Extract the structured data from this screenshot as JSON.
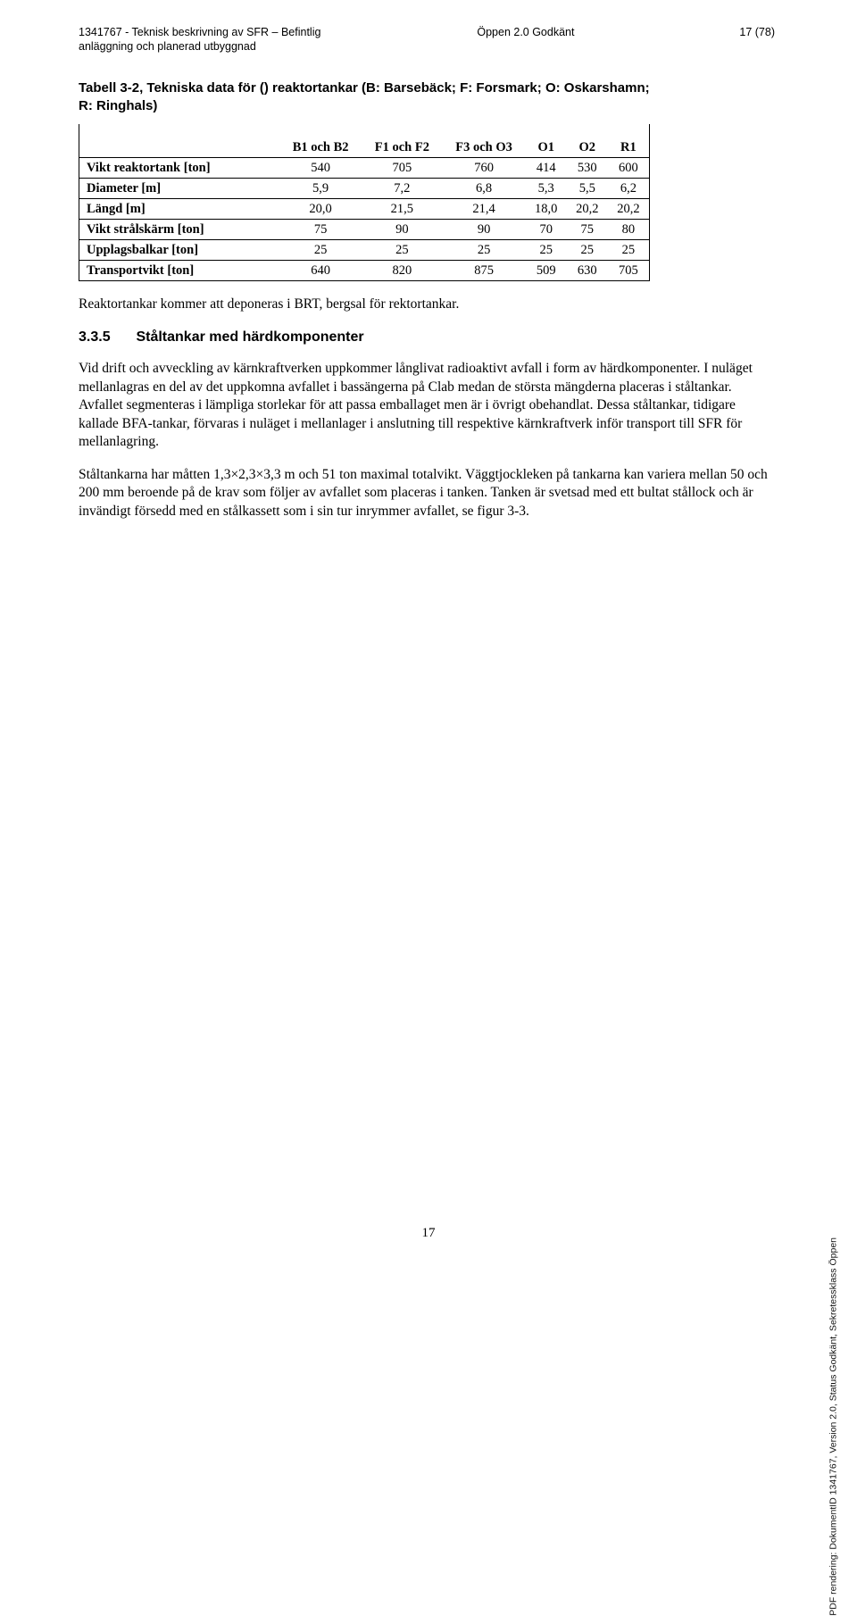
{
  "header": {
    "doc_id": "1341767  -  Teknisk beskrivning av SFR – Befintlig",
    "doc_line2": "anläggning och planerad utbyggnad",
    "status": "Öppen  2.0  Godkänt",
    "page": "17 (78)"
  },
  "table": {
    "caption": "Tabell 3-2, Tekniska data för () reaktortankar (B: Barsebäck; F: Forsmark; O: Oskarshamn; R: Ringhals)",
    "columns": [
      "",
      "B1 och B2",
      "F1 och F2",
      "F3 och O3",
      "O1",
      "O2",
      "R1"
    ],
    "rows": [
      {
        "label": "Vikt reaktortank [ton]",
        "cells": [
          "540",
          "705",
          "760",
          "414",
          "530",
          "600"
        ]
      },
      {
        "label": "Diameter [m]",
        "cells": [
          "5,9",
          "7,2",
          "6,8",
          "5,3",
          "5,5",
          "6,2"
        ]
      },
      {
        "label": "Längd [m]",
        "cells": [
          "20,0",
          "21,5",
          "21,4",
          "18,0",
          "20,2",
          "20,2"
        ]
      },
      {
        "label": "Vikt strålskärm [ton]",
        "cells": [
          "75",
          "90",
          "90",
          "70",
          "75",
          "80"
        ]
      },
      {
        "label": "Upplagsbalkar [ton]",
        "cells": [
          "25",
          "25",
          "25",
          "25",
          "25",
          "25"
        ]
      },
      {
        "label": "Transportvikt [ton]",
        "cells": [
          "640",
          "820",
          "875",
          "509",
          "630",
          "705"
        ]
      }
    ]
  },
  "para_after_table": "Reaktortankar kommer att deponeras i BRT, bergsal för rektortankar.",
  "section": {
    "num": "3.3.5",
    "title": "Ståltankar med härdkomponenter"
  },
  "para1": "Vid drift och avveckling av kärnkraftverken uppkommer långlivat radioaktivt avfall i form av härdkomponenter. I nuläget mellanlagras en del av det uppkomna avfallet i bassängerna på Clab medan de största mängderna placeras i ståltankar. Avfallet segmenteras i lämpliga storlekar för att passa emballaget men är i övrigt obehandlat. Dessa ståltankar, tidigare kallade BFA-tankar, förvaras i nuläget i mellanlager i anslutning till respektive kärnkraftverk inför transport till SFR för mellanlagring.",
  "para2": "Ståltankarna har måtten 1,3×2,3×3,3 m och 51 ton maximal totalvikt. Väggtjockleken på tankarna kan variera mellan 50 och 200 mm beroende på de krav som följer av avfallet som placeras i tanken. Tanken är svetsad med ett bultat stållock och är invändigt försedd med en stålkassett som i sin tur inrymmer avfallet, se figur 3-3.",
  "footer_page": "17",
  "side_note": "PDF rendering: DokumentID 1341767, Version 2.0, Status Godkänt, Sekretessklass Öppen"
}
